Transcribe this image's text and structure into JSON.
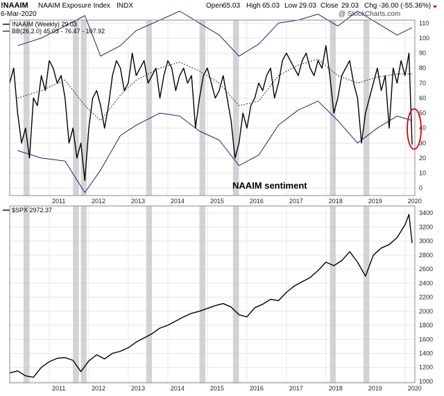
{
  "header": {
    "symbol": "!NAAIM",
    "name": "NAAIM Exposure Index",
    "exchange": "INDX",
    "date": "6-Mar-2020",
    "open_label": "Open",
    "open": "65.03",
    "high_label": "High",
    "high": "65.03",
    "low_label": "Low",
    "low": "29.03",
    "close_label": "Close",
    "close": "29.03",
    "chg_label": "Chg",
    "chg": "-36.00 (-55.36%)",
    "watermark": "@ StockCharts.com"
  },
  "colors": {
    "naaim_line": "#000000",
    "bollinger": "#1a237e",
    "shade": "#c8c8c8",
    "highlight": "#e00000",
    "grid": "#e6e6e6"
  },
  "chart_data": [
    {
      "type": "line",
      "panel": "top",
      "legend": [
        {
          "label": "!NAAIM (Weekly) 29.03"
        },
        {
          "label": "BB(26,2.0) 45.03 - 76.47 - 107.92"
        }
      ],
      "annotation": "NAAIM sentiment",
      "y_ticks": [
        0,
        10,
        20,
        30,
        40,
        50,
        60,
        70,
        80,
        90,
        100,
        110
      ],
      "ylim": [
        -5,
        112
      ],
      "x_ticks": [
        "2011",
        "2012",
        "2013",
        "2014",
        "2015",
        "2016",
        "2017",
        "2018",
        "2019",
        "2020"
      ],
      "xlim": [
        2010.0,
        2020.25
      ],
      "series": [
        {
          "x": [
            2010.0,
            2010.1,
            2010.2,
            2010.3,
            2010.4,
            2010.5,
            2010.6,
            2010.7,
            2010.8,
            2010.9,
            2011.0,
            2011.1,
            2011.2,
            2011.3,
            2011.4,
            2011.5,
            2011.6,
            2011.7,
            2011.8,
            2011.9,
            2012.0,
            2012.1,
            2012.2,
            2012.3,
            2012.4,
            2012.5,
            2012.6,
            2012.7,
            2012.8,
            2012.9,
            2013.0,
            2013.1,
            2013.2,
            2013.3,
            2013.4,
            2013.5,
            2013.6,
            2013.7,
            2013.8,
            2013.9,
            2014.0,
            2014.1,
            2014.2,
            2014.3,
            2014.4,
            2014.5,
            2014.6,
            2014.7,
            2014.8,
            2014.9,
            2015.0,
            2015.1,
            2015.2,
            2015.3,
            2015.4,
            2015.5,
            2015.6,
            2015.7,
            2015.8,
            2015.9,
            2016.0,
            2016.1,
            2016.2,
            2016.3,
            2016.4,
            2016.5,
            2016.6,
            2016.7,
            2016.8,
            2016.9,
            2017.0,
            2017.1,
            2017.2,
            2017.3,
            2017.4,
            2017.5,
            2017.6,
            2017.7,
            2017.8,
            2017.9,
            2018.0,
            2018.1,
            2018.2,
            2018.3,
            2018.4,
            2018.5,
            2018.6,
            2018.7,
            2018.8,
            2018.9,
            2019.0,
            2019.1,
            2019.2,
            2019.3,
            2019.4,
            2019.5,
            2019.6,
            2019.7,
            2019.8,
            2019.9,
            2020.0,
            2020.1,
            2020.18
          ],
          "values": [
            70,
            80,
            50,
            30,
            40,
            20,
            60,
            55,
            75,
            65,
            85,
            80,
            70,
            75,
            60,
            30,
            40,
            20,
            30,
            5,
            40,
            60,
            65,
            55,
            40,
            55,
            75,
            85,
            80,
            65,
            70,
            90,
            75,
            80,
            85,
            70,
            75,
            80,
            60,
            75,
            85,
            80,
            65,
            75,
            80,
            70,
            75,
            40,
            60,
            75,
            80,
            70,
            60,
            65,
            75,
            60,
            45,
            20,
            30,
            50,
            40,
            55,
            60,
            70,
            65,
            75,
            80,
            60,
            70,
            85,
            90,
            85,
            80,
            75,
            85,
            90,
            80,
            75,
            85,
            80,
            95,
            75,
            50,
            60,
            75,
            80,
            85,
            70,
            60,
            30,
            50,
            60,
            70,
            80,
            65,
            75,
            40,
            80,
            70,
            85,
            75,
            90,
            29
          ]
        },
        {
          "name": "upper",
          "x": [
            2010.2,
            2010.8,
            2011.4,
            2011.9,
            2012.3,
            2012.8,
            2013.2,
            2013.8,
            2014.3,
            2014.8,
            2015.3,
            2015.8,
            2016.3,
            2016.8,
            2017.3,
            2017.8,
            2018.3,
            2018.8,
            2019.3,
            2019.8,
            2020.18
          ],
          "values": [
            95,
            100,
            108,
            115,
            88,
            95,
            105,
            112,
            118,
            110,
            102,
            88,
            96,
            110,
            112,
            116,
            108,
            118,
            110,
            102,
            107
          ]
        },
        {
          "name": "middle",
          "x": [
            2010.2,
            2010.8,
            2011.4,
            2011.9,
            2012.3,
            2012.8,
            2013.2,
            2013.8,
            2014.3,
            2014.8,
            2015.3,
            2015.8,
            2016.3,
            2016.8,
            2017.3,
            2017.8,
            2018.3,
            2018.8,
            2019.3,
            2019.8,
            2020.18
          ],
          "values": [
            60,
            65,
            72,
            55,
            45,
            62,
            72,
            80,
            84,
            78,
            70,
            55,
            58,
            75,
            82,
            86,
            75,
            70,
            74,
            76,
            76
          ]
        },
        {
          "name": "lower",
          "x": [
            2010.2,
            2010.8,
            2011.4,
            2011.9,
            2012.3,
            2012.8,
            2013.2,
            2013.8,
            2014.3,
            2014.8,
            2015.3,
            2015.8,
            2016.3,
            2016.8,
            2017.3,
            2017.8,
            2018.3,
            2018.8,
            2019.3,
            2019.8,
            2020.18
          ],
          "values": [
            25,
            20,
            18,
            -3,
            12,
            35,
            42,
            50,
            48,
            38,
            32,
            15,
            22,
            42,
            52,
            58,
            45,
            30,
            40,
            48,
            45
          ]
        }
      ]
    },
    {
      "type": "line",
      "panel": "bottom",
      "legend": [
        {
          "label": "$SPX 2972.37"
        }
      ],
      "y_ticks": [
        1000,
        1200,
        1400,
        1600,
        1800,
        2000,
        2200,
        2400,
        2600,
        2800,
        3000,
        3200,
        3400
      ],
      "ylim": [
        980,
        3500
      ],
      "x_ticks": [
        "2011",
        "2012",
        "2013",
        "2014",
        "2015",
        "2016",
        "2017",
        "2018",
        "2019",
        "2020"
      ],
      "xlim": [
        2010.0,
        2020.25
      ],
      "series": [
        {
          "x": [
            2010.0,
            2010.2,
            2010.4,
            2010.6,
            2010.8,
            2011.0,
            2011.2,
            2011.4,
            2011.6,
            2011.8,
            2012.0,
            2012.2,
            2012.4,
            2012.6,
            2012.8,
            2013.0,
            2013.2,
            2013.4,
            2013.6,
            2013.8,
            2014.0,
            2014.2,
            2014.4,
            2014.6,
            2014.8,
            2015.0,
            2015.2,
            2015.4,
            2015.6,
            2015.8,
            2016.0,
            2016.2,
            2016.4,
            2016.6,
            2016.8,
            2017.0,
            2017.2,
            2017.4,
            2017.6,
            2017.8,
            2018.0,
            2018.2,
            2018.4,
            2018.6,
            2018.8,
            2019.0,
            2019.2,
            2019.4,
            2019.6,
            2019.8,
            2020.0,
            2020.1,
            2020.18
          ],
          "values": [
            1120,
            1150,
            1080,
            1060,
            1200,
            1280,
            1330,
            1340,
            1300,
            1140,
            1290,
            1380,
            1320,
            1400,
            1430,
            1480,
            1560,
            1620,
            1680,
            1760,
            1800,
            1860,
            1920,
            1970,
            2000,
            2040,
            2080,
            2110,
            2060,
            1950,
            1920,
            2050,
            2100,
            2170,
            2150,
            2270,
            2360,
            2420,
            2480,
            2580,
            2700,
            2650,
            2720,
            2850,
            2700,
            2500,
            2800,
            2900,
            2950,
            3050,
            3230,
            3380,
            2972
          ]
        }
      ]
    }
  ],
  "shaded_periods": [
    2010.35,
    2011.6,
    2011.8,
    2013.45,
    2014.8,
    2015.65,
    2018.1,
    2018.95
  ]
}
